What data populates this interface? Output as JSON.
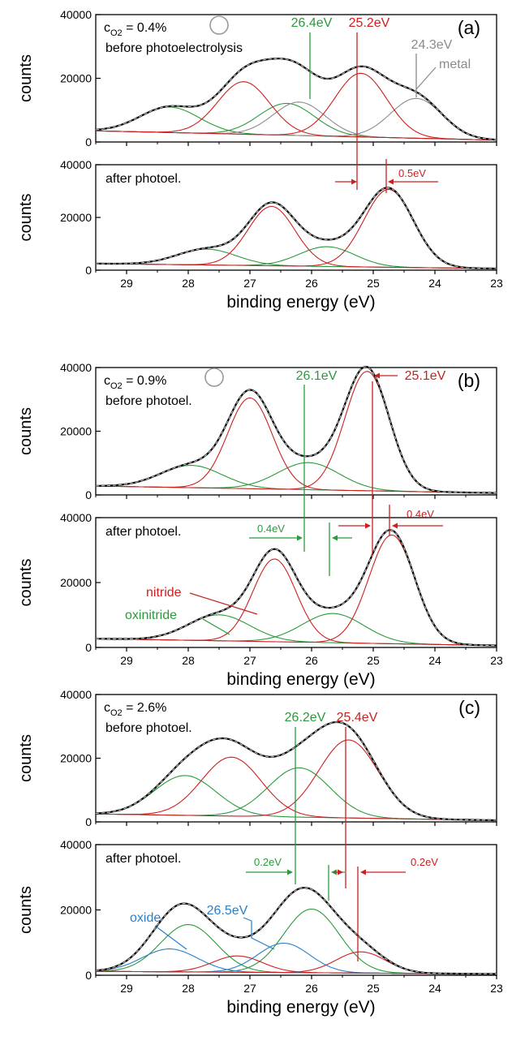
{
  "colors": {
    "nitride": "#cc2020",
    "oxinitride": "#2a9a3a",
    "metal": "#8a8a8a",
    "oxide": "#2a7fc8",
    "envelope": "#000000",
    "fitline": "#bdbdbd"
  },
  "chart_data": [
    {
      "type": "line",
      "panel": "(a)",
      "xlim": [
        29.5,
        23
      ],
      "ylim": [
        0,
        40000
      ],
      "xticks": [
        29,
        28,
        27,
        26,
        25,
        24,
        23
      ],
      "yticks": [
        0,
        20000,
        40000
      ],
      "ylabel": "counts",
      "xlabel": "",
      "texts": {
        "condition_sub": "O2",
        "condition_value": " = 0.4%",
        "state": "before photoelectrolysis",
        "panel_label": "(a)",
        "ox_pos": "26.4eV",
        "ni_pos": "25.2eV",
        "metal_pos": "24.3eV",
        "metal": "metal"
      },
      "background": {
        "start": 3500,
        "end": 600
      },
      "components": [
        {
          "species": "oxinitride",
          "center": 28.3,
          "height": 8000,
          "sigma": 0.48
        },
        {
          "species": "nitride",
          "center": 27.1,
          "height": 16500,
          "sigma": 0.42
        },
        {
          "species": "oxinitride",
          "center": 26.4,
          "height": 10000,
          "sigma": 0.45
        },
        {
          "species": "metal",
          "center": 26.2,
          "height": 10500,
          "sigma": 0.42
        },
        {
          "species": "nitride",
          "center": 25.2,
          "height": 20000,
          "sigma": 0.42
        },
        {
          "species": "metal",
          "center": 24.3,
          "height": 12500,
          "sigma": 0.42
        }
      ]
    },
    {
      "type": "line",
      "panel": "(a) after",
      "xlim": [
        29.5,
        23
      ],
      "ylim": [
        0,
        40000
      ],
      "xticks": [
        29,
        28,
        27,
        26,
        25,
        24,
        23
      ],
      "yticks": [
        0,
        20000,
        40000
      ],
      "ylabel": "counts",
      "xlabel": "binding energy (eV)",
      "texts": {
        "state": "after photoel.",
        "ni_shift": "0.5eV"
      },
      "background": {
        "start": 2500,
        "end": 600
      },
      "components": [
        {
          "species": "oxinitride",
          "center": 27.7,
          "height": 6000,
          "sigma": 0.48
        },
        {
          "species": "nitride",
          "center": 26.65,
          "height": 22500,
          "sigma": 0.38
        },
        {
          "species": "oxinitride",
          "center": 25.75,
          "height": 7500,
          "sigma": 0.45
        },
        {
          "species": "nitride",
          "center": 24.75,
          "height": 29500,
          "sigma": 0.4
        }
      ]
    },
    {
      "type": "line",
      "panel": "(b)",
      "xlim": [
        29.5,
        23
      ],
      "ylim": [
        0,
        40000
      ],
      "xticks": [
        29,
        28,
        27,
        26,
        25,
        24,
        23
      ],
      "yticks": [
        0,
        20000,
        40000
      ],
      "ylabel": "counts",
      "xlabel": "",
      "texts": {
        "condition_sub": "O2",
        "condition_value": " = 0.9%",
        "state": "before photoel.",
        "panel_label": "(b)",
        "ox_pos": "26.1eV",
        "ni_pos": "25.1eV"
      },
      "background": {
        "start": 2800,
        "end": 600
      },
      "components": [
        {
          "species": "oxinitride",
          "center": 27.95,
          "height": 7000,
          "sigma": 0.5
        },
        {
          "species": "nitride",
          "center": 27.0,
          "height": 28500,
          "sigma": 0.36
        },
        {
          "species": "oxinitride",
          "center": 26.05,
          "height": 8500,
          "sigma": 0.5
        },
        {
          "species": "nitride",
          "center": 25.1,
          "height": 37500,
          "sigma": 0.36
        }
      ]
    },
    {
      "type": "line",
      "panel": "(b) after",
      "xlim": [
        29.5,
        23
      ],
      "ylim": [
        0,
        40000
      ],
      "xticks": [
        29,
        28,
        27,
        26,
        25,
        24,
        23
      ],
      "yticks": [
        0,
        20000,
        40000
      ],
      "ylabel": "counts",
      "xlabel": "binding energy (eV)",
      "texts": {
        "state": "after photoel.",
        "ox_shift": "0.4eV",
        "ni_shift": "0.4eV",
        "nitride": "nitride",
        "oxinitride": "oxinitride"
      },
      "background": {
        "start": 2700,
        "end": 600
      },
      "components": [
        {
          "species": "oxinitride",
          "center": 27.5,
          "height": 8000,
          "sigma": 0.5
        },
        {
          "species": "nitride",
          "center": 26.6,
          "height": 25500,
          "sigma": 0.35
        },
        {
          "species": "oxinitride",
          "center": 25.65,
          "height": 9000,
          "sigma": 0.5
        },
        {
          "species": "nitride",
          "center": 24.7,
          "height": 33500,
          "sigma": 0.37
        }
      ]
    },
    {
      "type": "line",
      "panel": "(c)",
      "xlim": [
        29.5,
        23
      ],
      "ylim": [
        0,
        40000
      ],
      "xticks": [
        29,
        28,
        27,
        26,
        25,
        24,
        23
      ],
      "yticks": [
        0,
        20000,
        40000
      ],
      "ylabel": "counts",
      "xlabel": "",
      "texts": {
        "condition_sub": "O2",
        "condition_value": " = 2.6%",
        "state": "before photoel.",
        "panel_label": "(c)",
        "ox_pos": "26.2eV",
        "ni_pos": "25.4eV"
      },
      "background": {
        "start": 2500,
        "end": 500
      },
      "components": [
        {
          "species": "oxinitride",
          "center": 28.05,
          "height": 12500,
          "sigma": 0.5
        },
        {
          "species": "nitride",
          "center": 27.3,
          "height": 18500,
          "sigma": 0.48
        },
        {
          "species": "oxinitride",
          "center": 26.2,
          "height": 15500,
          "sigma": 0.5
        },
        {
          "species": "nitride",
          "center": 25.4,
          "height": 24500,
          "sigma": 0.48
        }
      ]
    },
    {
      "type": "line",
      "panel": "(c) after",
      "xlim": [
        29.5,
        23
      ],
      "ylim": [
        0,
        40000
      ],
      "xticks": [
        29,
        28,
        27,
        26,
        25,
        24,
        23
      ],
      "yticks": [
        0,
        20000,
        40000
      ],
      "ylabel": "counts",
      "xlabel": "binding energy (eV)",
      "texts": {
        "state": "after photoel.",
        "ox_shift": "0.2eV",
        "ni_shift": "0.2eV",
        "oxide_pos": "26.5eV",
        "oxide": "oxide"
      },
      "background": {
        "start": 1200,
        "end": 400
      },
      "components": [
        {
          "species": "oxide",
          "center": 28.3,
          "height": 7000,
          "sigma": 0.45
        },
        {
          "species": "oxinitride",
          "center": 28.0,
          "height": 14500,
          "sigma": 0.45
        },
        {
          "species": "nitride",
          "center": 27.2,
          "height": 5000,
          "sigma": 0.4
        },
        {
          "species": "oxide",
          "center": 26.45,
          "height": 9000,
          "sigma": 0.42
        },
        {
          "species": "oxinitride",
          "center": 26.0,
          "height": 19500,
          "sigma": 0.45
        },
        {
          "species": "nitride",
          "center": 25.2,
          "height": 6500,
          "sigma": 0.4
        }
      ]
    }
  ]
}
